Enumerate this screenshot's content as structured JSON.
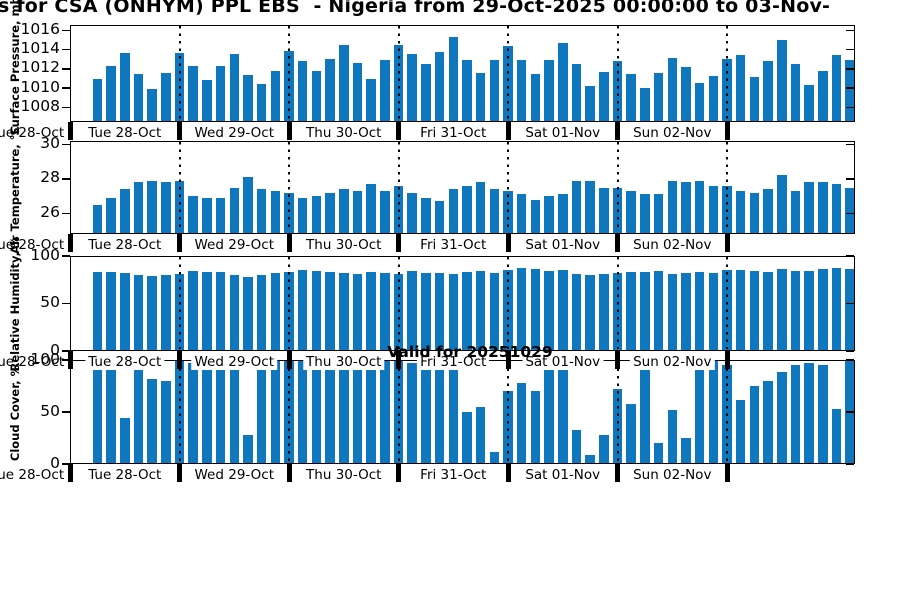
{
  "title": "s for CSA (ONHYM) PPL EBS  - Nigeria from 29-Oct-2025 00:00:00 to 03-Nov-",
  "watermark": "Valid for 20251029",
  "bar_color": "#0f77be",
  "x_axis": {
    "clipped_left_label": "Tue 28-Oct",
    "day_labels": [
      "Tue 28-Oct",
      "Wed 29-Oct",
      "Thu 30-Oct",
      "Fri 31-Oct",
      "Sat 01-Nov",
      "Sun 02-Nov"
    ],
    "start": "Tue 28-Oct 06:00",
    "interval_hours": 3
  },
  "chart_data": [
    {
      "type": "bar",
      "name": "surface-pressure",
      "ylabel": "Surface Pressure, mb",
      "yticks": [
        1008,
        1010,
        1012,
        1014,
        1016
      ],
      "ylim": [
        1006.5,
        1016.55
      ],
      "values": [
        1011.0,
        1012.3,
        1013.6,
        1011.5,
        1009.9,
        1011.6,
        1013.7,
        1012.3,
        1010.9,
        1012.3,
        1013.5,
        1011.4,
        1010.4,
        1011.8,
        1013.9,
        1012.8,
        1011.8,
        1013.0,
        1014.5,
        1012.6,
        1011.0,
        1012.9,
        1014.5,
        1013.5,
        1012.5,
        1013.8,
        1015.3,
        1012.9,
        1011.6,
        1012.9,
        1014.4,
        1012.9,
        1011.5,
        1012.9,
        1014.7,
        1012.5,
        1010.2,
        1011.7,
        1012.8,
        1011.5,
        1010.0,
        1011.6,
        1013.1,
        1012.2,
        1010.5,
        1011.3,
        1013.0,
        1013.4,
        1011.2,
        1012.8,
        1015.0,
        1012.5,
        1010.3,
        1011.8,
        1013.4,
        1012.9
      ]
    },
    {
      "type": "bar",
      "name": "air-temperature",
      "ylabel": "Air Temperature, °C",
      "yticks": [
        26,
        28,
        30
      ],
      "ylim": [
        24.8,
        30.2
      ],
      "values": [
        26.5,
        26.9,
        27.4,
        27.8,
        27.9,
        27.8,
        27.9,
        27.0,
        26.9,
        26.9,
        27.5,
        28.1,
        27.4,
        27.3,
        27.2,
        26.9,
        27.0,
        27.2,
        27.4,
        27.3,
        27.7,
        27.3,
        27.6,
        27.2,
        26.9,
        26.7,
        27.4,
        27.6,
        27.8,
        27.4,
        27.3,
        27.1,
        26.8,
        27.0,
        27.1,
        27.9,
        27.9,
        27.5,
        27.5,
        27.3,
        27.1,
        27.1,
        27.9,
        27.8,
        27.9,
        27.6,
        27.6,
        27.3,
        27.2,
        27.4,
        28.2,
        27.3,
        27.8,
        27.8,
        27.7,
        27.5
      ]
    },
    {
      "type": "bar",
      "name": "relative-humidity",
      "ylabel": "Relative Humidity, %",
      "yticks": [
        0,
        50,
        100
      ],
      "ylim": [
        0,
        100
      ],
      "values": [
        83,
        83,
        82,
        80,
        79,
        80,
        81,
        84,
        83,
        83,
        80,
        78,
        80,
        82,
        83,
        85,
        84,
        83,
        82,
        81,
        83,
        82,
        81,
        84,
        82,
        82,
        81,
        83,
        84,
        82,
        85,
        87,
        86,
        84,
        85,
        81,
        80,
        81,
        82,
        83,
        83,
        84,
        81,
        82,
        83,
        82,
        85,
        85,
        84,
        83,
        86,
        84,
        84,
        86,
        87,
        86
      ]
    },
    {
      "type": "bar",
      "name": "cloud-cover",
      "ylabel": "Cloud Cover, %",
      "yticks": [
        0,
        50,
        100
      ],
      "ylim": [
        0,
        100
      ],
      "values": [
        100,
        96,
        44,
        96,
        82,
        80,
        100,
        97,
        100,
        100,
        90,
        28,
        100,
        100,
        100,
        100,
        97,
        91,
        96,
        98,
        100,
        100,
        100,
        97,
        100,
        95,
        90,
        50,
        55,
        12,
        70,
        78,
        70,
        98,
        100,
        33,
        9,
        28,
        72,
        58,
        95,
        20,
        52,
        25,
        100,
        100,
        95,
        62,
        75,
        80,
        88,
        95,
        97,
        95,
        53,
        100
      ]
    }
  ]
}
